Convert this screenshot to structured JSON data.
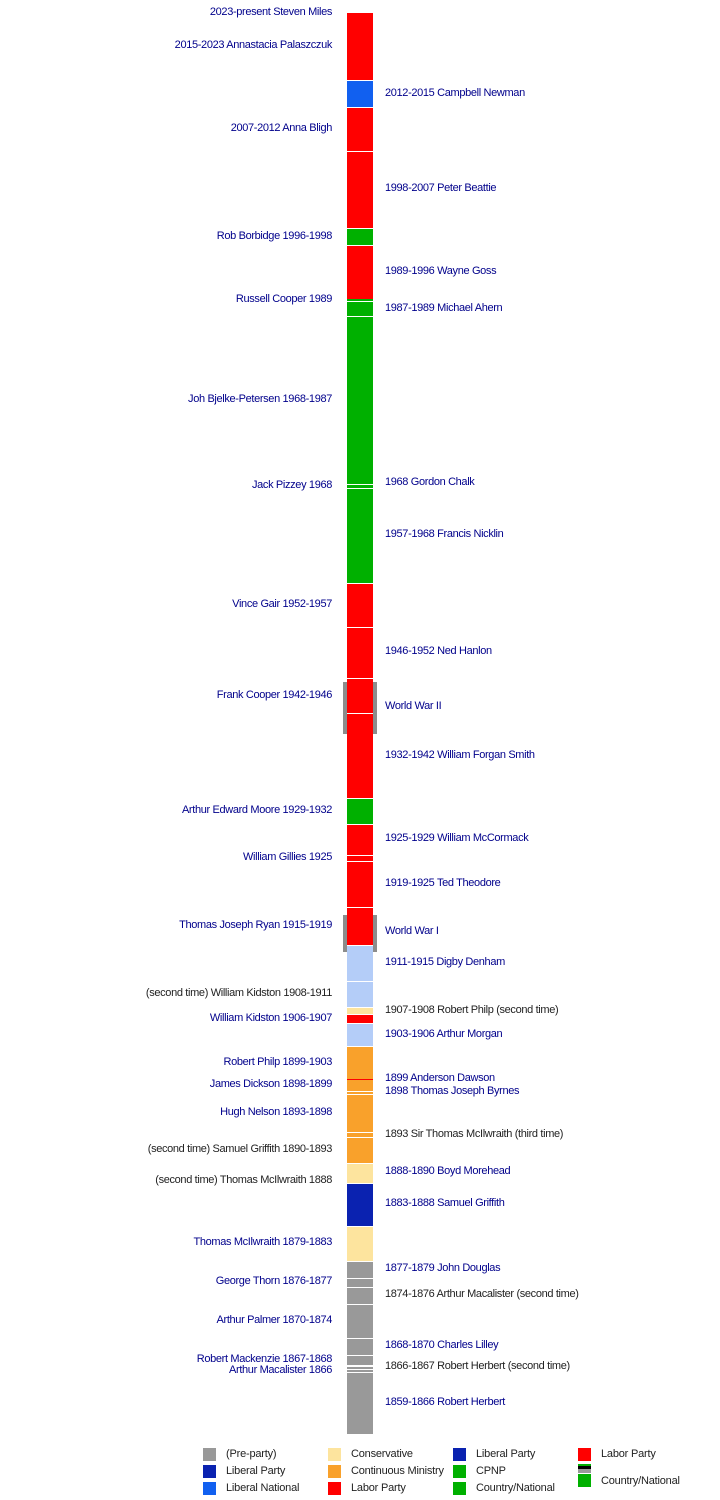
{
  "timeline": {
    "year_range": [
      1859,
      2023
    ],
    "colors": {
      "preparty": "#999999",
      "conservative": "#fde49e",
      "liberal": "#0a22b0",
      "continuous": "#f9a12b",
      "ministerial": "#b4cdf8",
      "labor": "#ff0000",
      "cpnp": "#00b000",
      "country": "#00b000",
      "lnp": "#1160f0",
      "war": "#8c8c8c"
    },
    "segments": [
      {
        "label": "1859-1866 Robert Herbert",
        "start": 1859,
        "end": 1866.1,
        "party": "preparty",
        "side": "right",
        "link": true
      },
      {
        "label": "Arthur Macalister 1866",
        "start": 1866.1,
        "end": 1866.5,
        "party": "preparty",
        "side": "left",
        "link": true
      },
      {
        "label": "1866-1867 Robert Herbert (second time)",
        "start": 1866.5,
        "end": 1866.9,
        "party": "preparty",
        "side": "right",
        "link": false
      },
      {
        "label": "Robert Mackenzie 1867-1868",
        "start": 1866.9,
        "end": 1868.1,
        "party": "preparty",
        "side": "left",
        "link": true
      },
      {
        "label": "1868-1870 Charles Lilley",
        "start": 1868.1,
        "end": 1870.1,
        "party": "preparty",
        "side": "right",
        "link": true
      },
      {
        "label": "Arthur Palmer 1870-1874",
        "start": 1870.1,
        "end": 1874.0,
        "party": "preparty",
        "side": "left",
        "link": true
      },
      {
        "label": "1874-1876 Arthur Macalister (second time)",
        "start": 1874.0,
        "end": 1876.0,
        "party": "preparty",
        "side": "right",
        "link": false
      },
      {
        "label": "George Thorn 1876-1877",
        "start": 1876.0,
        "end": 1877.0,
        "party": "preparty",
        "side": "left",
        "link": true
      },
      {
        "label": "1877-1879 John Douglas",
        "start": 1877.0,
        "end": 1879.0,
        "party": "preparty",
        "side": "right",
        "link": true
      },
      {
        "label": "Thomas McIlwraith 1879-1883",
        "start": 1879.0,
        "end": 1883.0,
        "party": "conservative",
        "side": "left",
        "link": true
      },
      {
        "label": "1883-1888 Samuel Griffith",
        "start": 1883.0,
        "end": 1888.0,
        "party": "liberal",
        "side": "right",
        "link": true
      },
      {
        "label": "(second time) Thomas McIlwraith 1888",
        "start": 1888.0,
        "end": 1888.3,
        "party": "conservative",
        "side": "left",
        "link": false
      },
      {
        "label": "1888-1890 Boyd Morehead",
        "start": 1888.3,
        "end": 1890.2,
        "party": "conservative",
        "side": "right",
        "link": true
      },
      {
        "label": "(second time) Samuel Griffith 1890-1893",
        "start": 1890.2,
        "end": 1893.2,
        "party": "continuous",
        "side": "left",
        "link": false
      },
      {
        "label": "1893 Sir Thomas McIlwraith (third time)",
        "start": 1893.2,
        "end": 1893.8,
        "party": "continuous",
        "side": "right",
        "link": false
      },
      {
        "label": "Hugh Nelson 1893-1898",
        "start": 1893.8,
        "end": 1898.2,
        "party": "continuous",
        "side": "left",
        "link": true
      },
      {
        "label": "1898 Thomas Joseph Byrnes",
        "start": 1898.2,
        "end": 1898.6,
        "party": "continuous",
        "side": "right",
        "link": true
      },
      {
        "label": "James Dickson 1898-1899",
        "start": 1898.6,
        "end": 1899.9,
        "party": "continuous",
        "side": "left",
        "link": true
      },
      {
        "label": "1899 Anderson Dawson",
        "start": 1899.9,
        "end": 1899.95,
        "party": "labor",
        "side": "right",
        "link": true
      },
      {
        "label": "Robert Philp 1899-1903",
        "start": 1899.95,
        "end": 1903.7,
        "party": "continuous",
        "side": "left",
        "link": true
      },
      {
        "label": "1903-1906 Arthur Morgan",
        "start": 1903.7,
        "end": 1906.4,
        "party": "ministerial",
        "side": "right",
        "link": true
      },
      {
        "label": "William Kidston 1906-1907",
        "start": 1906.4,
        "end": 1907.4,
        "party": "labor",
        "side": "left",
        "link": true
      },
      {
        "label": "1907-1908 Robert Philp (second time)",
        "start": 1907.4,
        "end": 1908.2,
        "party": "conservative",
        "side": "right",
        "link": false
      },
      {
        "label": "(second time) William Kidston 1908-1911",
        "start": 1908.2,
        "end": 1911.2,
        "party": "ministerial",
        "side": "left",
        "link": false
      },
      {
        "label": "1911-1915 Digby Denham",
        "start": 1911.2,
        "end": 1915.4,
        "party": "ministerial",
        "side": "right",
        "link": true
      },
      {
        "label": "Thomas Joseph Ryan 1915-1919",
        "start": 1915.4,
        "end": 1919.8,
        "party": "labor",
        "side": "left",
        "link": true
      },
      {
        "label": "1919-1925 Ted Theodore",
        "start": 1919.8,
        "end": 1925.1,
        "party": "labor",
        "side": "right",
        "link": true
      },
      {
        "label": "William Gillies 1925",
        "start": 1925.1,
        "end": 1925.8,
        "party": "labor",
        "side": "left",
        "link": true
      },
      {
        "label": "1925-1929 William McCormack",
        "start": 1925.8,
        "end": 1929.4,
        "party": "labor",
        "side": "right",
        "link": true
      },
      {
        "label": "Arthur Edward Moore 1929-1932",
        "start": 1929.4,
        "end": 1932.4,
        "party": "cpnp",
        "side": "left",
        "link": true
      },
      {
        "label": "1932-1942 William Forgan Smith",
        "start": 1932.4,
        "end": 1942.1,
        "party": "labor",
        "side": "right",
        "link": true
      },
      {
        "label": "Frank Cooper 1942-1946",
        "start": 1942.1,
        "end": 1946.2,
        "party": "labor",
        "side": "left",
        "link": true
      },
      {
        "label": "1946-1952 Ned Hanlon",
        "start": 1946.2,
        "end": 1952.1,
        "party": "labor",
        "side": "right",
        "link": true
      },
      {
        "label": "Vince Gair 1952-1957",
        "start": 1952.1,
        "end": 1957.2,
        "party": "labor",
        "side": "left",
        "link": true
      },
      {
        "label": "1957-1968 Francis Nicklin",
        "start": 1957.2,
        "end": 1968.1,
        "party": "country",
        "side": "right",
        "link": true
      },
      {
        "label": "Jack Pizzey 1968",
        "start": 1968.1,
        "end": 1968.6,
        "party": "country",
        "side": "left",
        "link": true
      },
      {
        "label": "1968 Gordon Chalk",
        "start": 1968.6,
        "end": 1968.7,
        "party": "country",
        "side": "right",
        "link": true
      },
      {
        "label": "Joh Bjelke-Petersen 1968-1987",
        "start": 1968.7,
        "end": 1987.9,
        "party": "country",
        "side": "left",
        "link": true
      },
      {
        "label": "1987-1989 Michael Ahern",
        "start": 1987.9,
        "end": 1989.7,
        "party": "country",
        "side": "right",
        "link": true
      },
      {
        "label": "Russell Cooper 1989",
        "start": 1989.7,
        "end": 1989.9,
        "party": "country",
        "side": "left",
        "link": true
      },
      {
        "label": "1989-1996 Wayne Goss",
        "start": 1989.9,
        "end": 1996.1,
        "party": "labor",
        "side": "right",
        "link": true
      },
      {
        "label": "Rob Borbidge 1996-1998",
        "start": 1996.1,
        "end": 1998.1,
        "party": "country",
        "side": "left",
        "link": true
      },
      {
        "label": "1998-2007 Peter Beattie",
        "start": 1998.1,
        "end": 2007.0,
        "party": "labor",
        "side": "right",
        "link": true
      },
      {
        "label": "2007-2012 Anna Bligh",
        "start": 2007.0,
        "end": 2012.0,
        "party": "labor",
        "side": "left",
        "link": true
      },
      {
        "label": "2012-2015 Campbell Newman",
        "start": 2012.0,
        "end": 2015.1,
        "party": "lnp",
        "side": "right",
        "link": true
      },
      {
        "label": "2015-2023 Annastacia Palaszczuk",
        "start": 2015.1,
        "end": 2023.0,
        "party": "labor",
        "side": "left",
        "link": true
      },
      {
        "label": "2023-present Steven Miles",
        "start": 2023.0,
        "end": 2023.0,
        "party": "labor",
        "side": "left",
        "link": true
      }
    ],
    "wars": [
      {
        "label": "World War I",
        "start": 1914.6,
        "end": 1918.9
      },
      {
        "label": "World War II",
        "start": 1939.7,
        "end": 1945.7
      }
    ]
  },
  "legend": [
    {
      "label": "(Pre-party)",
      "color": "#999999"
    },
    {
      "label": "Liberal Party",
      "color": "#0a22b0"
    },
    {
      "label": "Liberal National",
      "color": "#1160f0"
    },
    {
      "label": "Conservative",
      "color": "#fde49e"
    },
    {
      "label": "Continuous Ministry",
      "color": "#f9a12b"
    },
    {
      "label": "Labor Party",
      "color": "#ff0000"
    },
    {
      "label": "Liberal Party",
      "color": "#0a22b0"
    },
    {
      "label": "CPNP",
      "color": "#00b000"
    },
    {
      "label": "Country/National",
      "color": "#00b000"
    },
    {
      "label": "Labor Party",
      "color": "#ff0000"
    },
    {
      "label": "Country/National",
      "color": "#00b000"
    }
  ]
}
